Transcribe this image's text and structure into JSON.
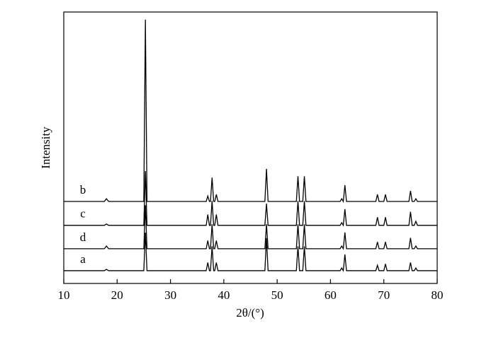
{
  "chart_data": {
    "type": "line",
    "xlabel": "2θ/(°)",
    "ylabel": "Intensity",
    "xlim": [
      10,
      80
    ],
    "xticks": [
      10,
      20,
      30,
      40,
      50,
      60,
      70,
      80
    ],
    "ylim": [
      0,
      100
    ],
    "x": [
      10,
      17.6,
      18,
      18.4,
      25.0,
      25.3,
      25.6,
      36.7,
      37.0,
      37.3,
      37.5,
      37.8,
      38.1,
      38.3,
      38.6,
      38.9,
      47.7,
      48.0,
      48.3,
      53.6,
      53.9,
      54.2,
      54.8,
      55.1,
      55.4,
      61.8,
      62.1,
      62.4,
      62.7,
      63.0,
      68.5,
      68.8,
      69.1,
      70.0,
      70.3,
      70.6,
      74.7,
      75.0,
      75.3,
      75.7,
      76.0,
      76.3,
      80
    ],
    "series": [
      {
        "name": "b",
        "color": "#000000",
        "values": [
          30.2,
          30.2,
          31.2,
          30.2,
          30.2,
          97.2,
          30.2,
          30.2,
          32.2,
          30.2,
          30.2,
          39,
          30.2,
          30.2,
          32.8,
          30.2,
          30.2,
          42.2,
          30.2,
          30.2,
          39.5,
          30.2,
          30.2,
          39.5,
          30.2,
          30.2,
          31.2,
          30.2,
          36.2,
          30.2,
          30.2,
          32.8,
          30.2,
          30.2,
          32.8,
          30.2,
          30.2,
          34.1,
          30.2,
          30.2,
          31.2,
          30.2,
          30.2
        ]
      },
      {
        "name": "c",
        "color": "#000000",
        "values": [
          21.4,
          21.4,
          21.9,
          21.4,
          21.4,
          41.4,
          21.4,
          21.4,
          25.4,
          21.4,
          21.4,
          30.4,
          21.4,
          21.4,
          25.4,
          21.4,
          21.4,
          29.4,
          21.4,
          21.4,
          30.4,
          21.4,
          21.4,
          30.4,
          21.4,
          21.4,
          22.4,
          21.4,
          27.4,
          21.4,
          21.4,
          24.4,
          21.4,
          21.4,
          24.4,
          21.4,
          21.4,
          26.4,
          21.4,
          21.4,
          22.9,
          21.4,
          21.4
        ]
      },
      {
        "name": "d",
        "color": "#000000",
        "values": [
          12.8,
          12.8,
          13.8,
          12.8,
          12.8,
          28.8,
          12.8,
          12.8,
          15.8,
          12.8,
          12.8,
          21.8,
          12.8,
          12.8,
          15.8,
          12.8,
          12.8,
          21.8,
          12.8,
          12.8,
          21.8,
          12.8,
          12.8,
          21.8,
          12.8,
          12.8,
          13.8,
          12.8,
          18.8,
          12.8,
          12.8,
          15.3,
          12.8,
          12.8,
          15.3,
          12.8,
          12.8,
          16.8,
          12.8,
          12.8,
          13.8,
          12.8,
          12.8
        ]
      },
      {
        "name": "a",
        "color": "#000000",
        "values": [
          4.7,
          4.7,
          5.2,
          4.7,
          4.7,
          18.7,
          4.7,
          4.7,
          7.7,
          4.7,
          4.7,
          13.7,
          4.7,
          4.7,
          7.7,
          4.7,
          4.7,
          16.7,
          4.7,
          4.7,
          13.7,
          4.7,
          4.7,
          13.7,
          4.7,
          4.7,
          5.7,
          4.7,
          10.7,
          4.7,
          4.7,
          6.7,
          4.7,
          4.7,
          7.2,
          4.7,
          4.7,
          7.7,
          4.7,
          4.7,
          5.7,
          4.7,
          4.7
        ]
      }
    ]
  }
}
